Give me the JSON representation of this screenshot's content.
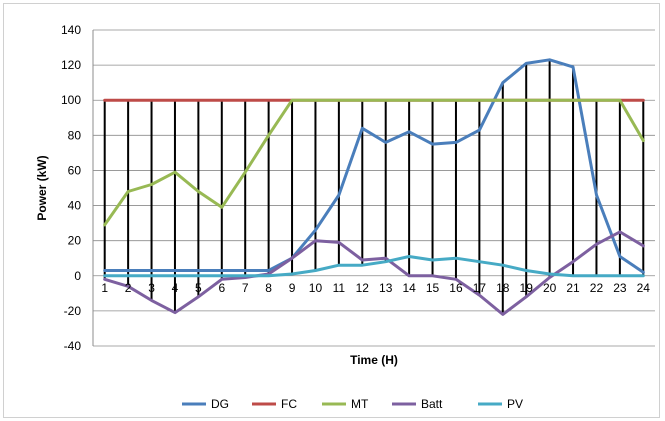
{
  "chart_data": {
    "type": "line",
    "title": "",
    "xlabel": "Time (H)",
    "ylabel": "Power (kW)",
    "ylim": [
      -40,
      140
    ],
    "yticks": [
      -40,
      -20,
      0,
      20,
      40,
      60,
      80,
      100,
      120,
      140
    ],
    "categories": [
      "1",
      "2",
      "3",
      "4",
      "5",
      "6",
      "7",
      "8",
      "9",
      "10",
      "11",
      "12",
      "13",
      "14",
      "15",
      "16",
      "17",
      "18",
      "19",
      "20",
      "21",
      "22",
      "23",
      "24"
    ],
    "grid": "horizontal",
    "legend_position": "bottom",
    "series": [
      {
        "name": "DG",
        "color": "#4a7ebb",
        "values": [
          3,
          3,
          3,
          3,
          3,
          3,
          3,
          3,
          10,
          26,
          46,
          84,
          76,
          82,
          75,
          76,
          83,
          110,
          121,
          123,
          119,
          46,
          11,
          2
        ]
      },
      {
        "name": "FC",
        "color": "#be4b48",
        "values": [
          100,
          100,
          100,
          100,
          100,
          100,
          100,
          100,
          100,
          100,
          100,
          100,
          100,
          100,
          100,
          100,
          100,
          100,
          100,
          100,
          100,
          100,
          100,
          100
        ]
      },
      {
        "name": "MT",
        "color": "#98b954",
        "values": [
          29,
          48,
          52,
          59,
          48,
          39,
          59,
          80,
          100,
          100,
          100,
          100,
          100,
          100,
          100,
          100,
          100,
          100,
          100,
          100,
          100,
          100,
          100,
          77
        ]
      },
      {
        "name": "Batt",
        "color": "#7d60a0",
        "values": [
          -2,
          -6,
          -14,
          -21,
          -12,
          -2,
          -1,
          1,
          10,
          20,
          19,
          9,
          10,
          0,
          0,
          -2,
          -11,
          -22,
          -12,
          -1,
          8,
          18,
          25,
          17
        ]
      },
      {
        "name": "PV",
        "color": "#46aac5",
        "values": [
          0,
          0,
          0,
          0,
          0,
          0,
          0,
          0,
          1,
          3,
          6,
          6,
          8,
          11,
          9,
          10,
          8,
          6,
          3,
          1,
          0,
          0,
          0,
          0
        ]
      }
    ]
  }
}
